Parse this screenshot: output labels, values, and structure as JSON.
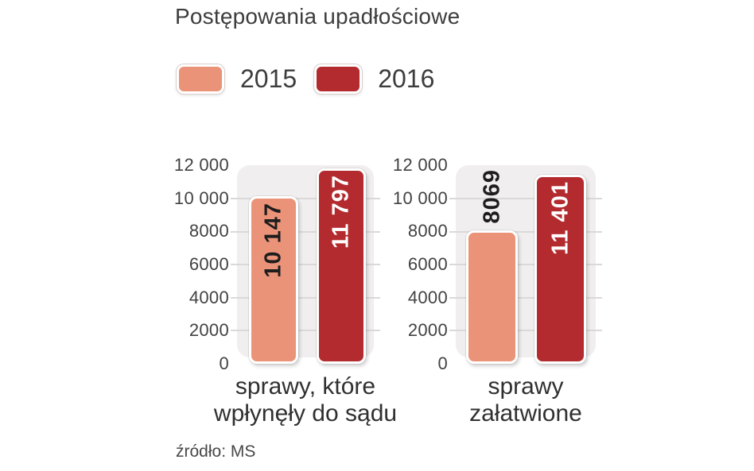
{
  "page": {
    "background": "#ffffff"
  },
  "header": {
    "title": "Postępowania upadłościowe"
  },
  "legend": {
    "items": [
      {
        "label": "2015",
        "color": "#EB9379"
      },
      {
        "label": "2016",
        "color": "#B32B2E"
      }
    ]
  },
  "source": {
    "text": "źródło: MS"
  },
  "chart_data": {
    "type": "bar",
    "title": "Postępowania upadłościowe",
    "xlabel": "",
    "ylabel": "",
    "ylim": [
      0,
      12000
    ],
    "grid": true,
    "legend_position": "top",
    "yticks": [
      "12 000",
      "10 000",
      "8000",
      "6000",
      "4000",
      "2000",
      "0"
    ],
    "series_names": [
      "2015",
      "2016"
    ],
    "colors": [
      "#EB9379",
      "#B32B2E"
    ],
    "groups": [
      {
        "category": "sprawy, które wpłynęły do sądu",
        "category_lines": [
          "sprawy, które",
          "wpłynęły do sądu"
        ],
        "values": [
          10147,
          11797
        ],
        "value_labels": [
          "10 147",
          "11 797"
        ]
      },
      {
        "category": "sprawy załatwione",
        "category_lines": [
          "sprawy",
          "załatwione"
        ],
        "values": [
          8069,
          11401
        ],
        "value_labels": [
          "8069",
          "11 401"
        ]
      }
    ],
    "source": "źródło: MS"
  }
}
